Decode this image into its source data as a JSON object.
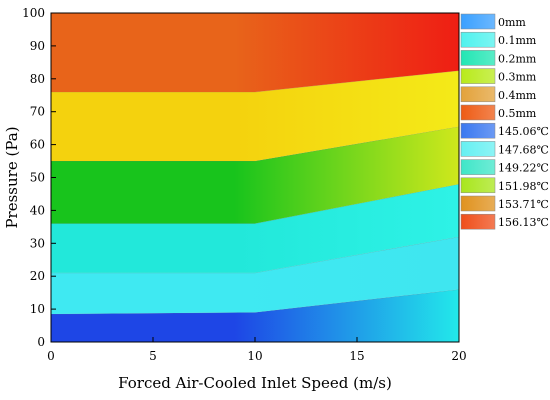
{
  "chart_data": {
    "type": "area",
    "title": "",
    "xlabel": "Forced Air-Cooled Inlet Speed (m/s)",
    "ylabel": "Pressure (Pa)",
    "xlim": [
      0,
      20
    ],
    "ylim": [
      0,
      100
    ],
    "xticks": [
      0,
      5,
      10,
      15,
      20
    ],
    "yticks": [
      0,
      10,
      20,
      30,
      40,
      50,
      60,
      70,
      80,
      90,
      100
    ],
    "grid": false,
    "x": [
      0,
      10,
      20
    ],
    "boundaries": [
      {
        "name": "0mm",
        "y": [
          8.5,
          9,
          16
        ]
      },
      {
        "name": "0.1mm",
        "y": [
          21,
          21,
          32
        ]
      },
      {
        "name": "0.2mm",
        "y": [
          36,
          36,
          48
        ]
      },
      {
        "name": "0.3mm",
        "y": [
          55,
          55,
          65.5
        ]
      },
      {
        "name": "0.4mm",
        "y": [
          76,
          76,
          82.5
        ]
      },
      {
        "name": "0.5mm",
        "y": [
          100,
          100,
          100
        ]
      }
    ],
    "legend": {
      "placement": "right",
      "entries": [
        {
          "label": "0mm",
          "color": "#3aa0ff"
        },
        {
          "label": "0.1mm",
          "color": "#4ff2ee"
        },
        {
          "label": "0.2mm",
          "color": "#22e6b4"
        },
        {
          "label": "0.3mm",
          "color": "#b8ea1a"
        },
        {
          "label": "0.4mm",
          "color": "#e3a23a"
        },
        {
          "label": "0.5mm",
          "color": "#ee5b14"
        },
        {
          "label": "145.06℃",
          "color": "#3a78f0"
        },
        {
          "label": "147.68℃",
          "color": "#66f0f2"
        },
        {
          "label": "149.22℃",
          "color": "#3fe6c8"
        },
        {
          "label": "151.98℃",
          "color": "#a8e61c"
        },
        {
          "label": "153.71℃",
          "color": "#e0921e"
        },
        {
          "label": "156.13℃",
          "color": "#ef4e1a"
        }
      ]
    },
    "band_colors": [
      {
        "left": "#1e46e6",
        "right": "#22e8ea"
      },
      {
        "left": "#3fe9f2",
        "right": "#3fe6f0"
      },
      {
        "left": "#22e8da",
        "right": "#2ef2e6"
      },
      {
        "left": "#18c41c",
        "right": "#cfe81c"
      },
      {
        "left": "#f4d20e",
        "right": "#f4ea18"
      },
      {
        "left": "#e8641a",
        "right": "#ef1e14"
      }
    ]
  }
}
